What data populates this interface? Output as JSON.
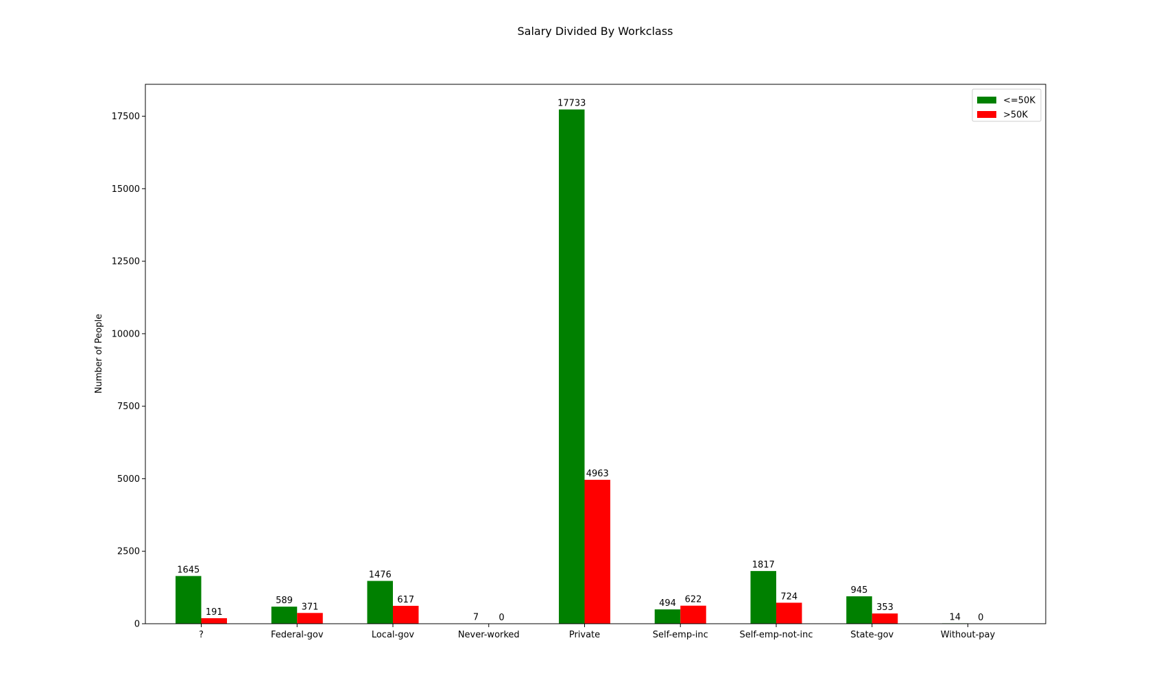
{
  "chart_data": {
    "type": "bar",
    "title": "Salary Divided By Workclass",
    "xlabel": "",
    "ylabel": "Number of People",
    "categories": [
      "?",
      "Federal-gov",
      "Local-gov",
      "Never-worked",
      "Private",
      "Self-emp-inc",
      "Self-emp-not-inc",
      "State-gov",
      "Without-pay"
    ],
    "series": [
      {
        "name": "<=50K",
        "color": "#008000",
        "values": [
          1645,
          589,
          1476,
          7,
          17733,
          494,
          1817,
          945,
          14
        ]
      },
      {
        "name": ">50K",
        "color": "#ff0000",
        "values": [
          191,
          371,
          617,
          0,
          4963,
          622,
          724,
          353,
          0
        ]
      }
    ],
    "ylim": [
      0,
      18600
    ],
    "yticks": [
      0,
      2500,
      5000,
      7500,
      10000,
      12500,
      15000,
      17500
    ],
    "grid": false,
    "legend_position": "top-right"
  }
}
